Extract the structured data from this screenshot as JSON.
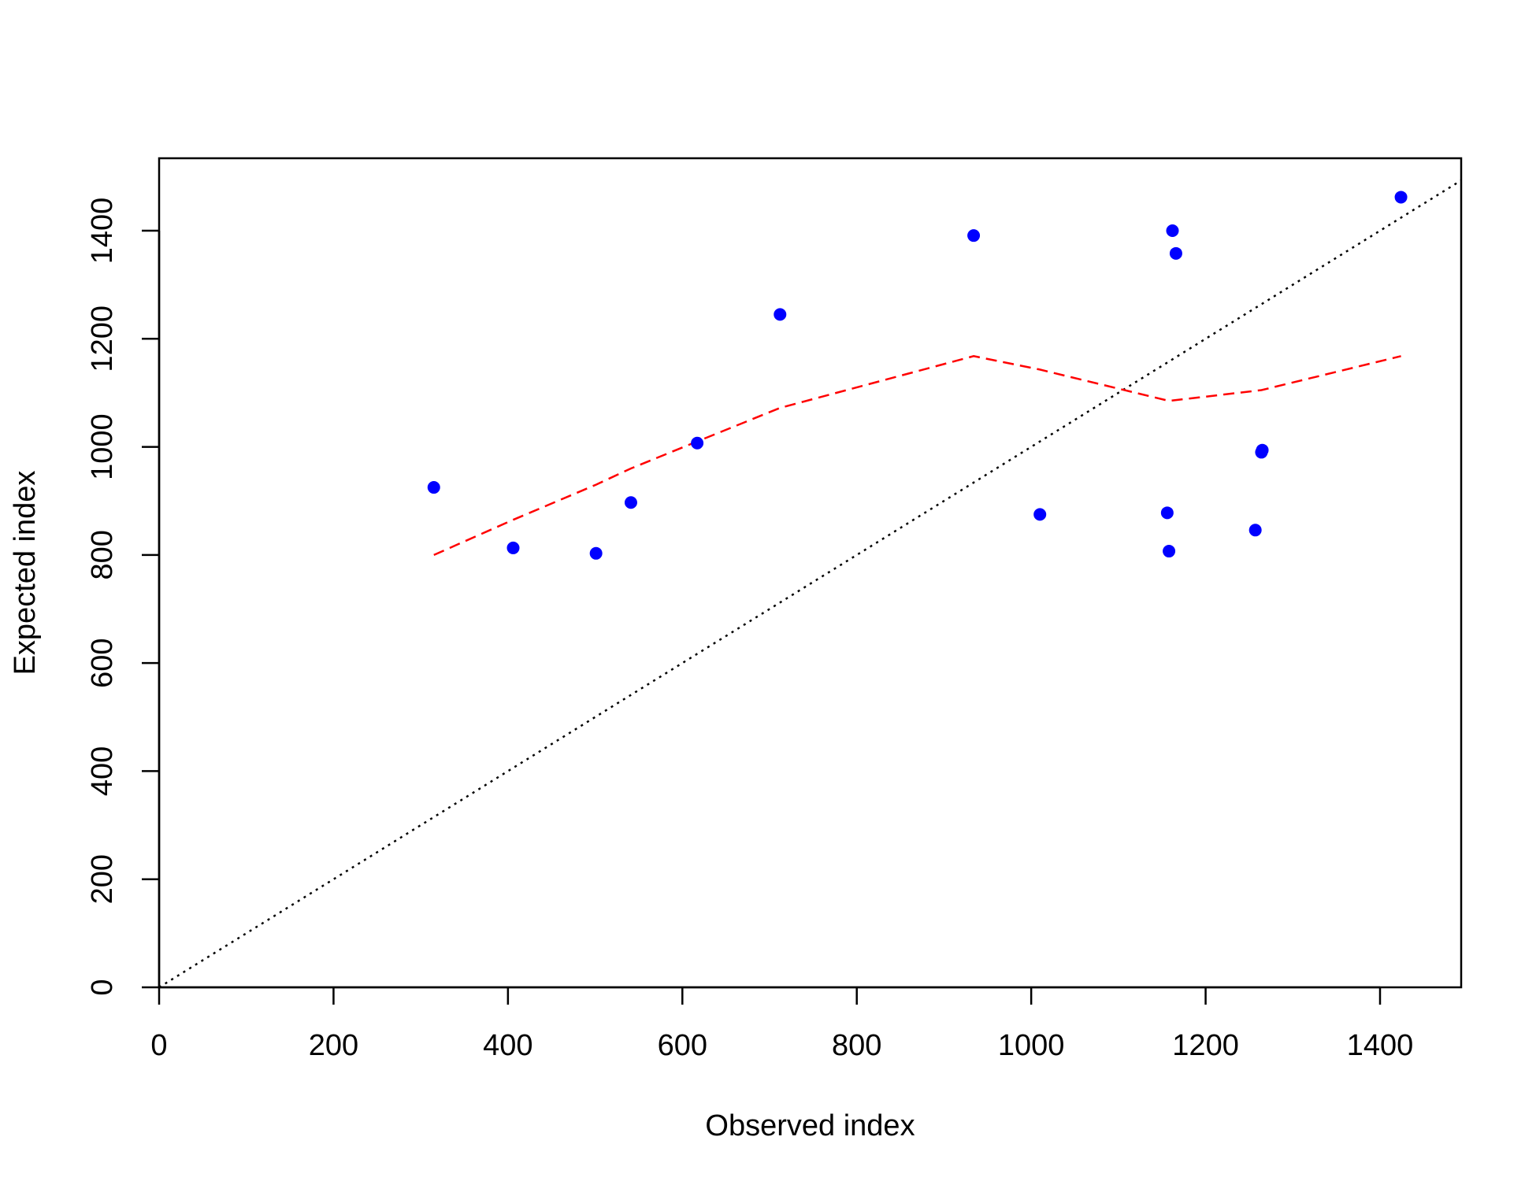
{
  "chart_data": {
    "type": "scatter",
    "title": "",
    "xlabel": "Observed index",
    "ylabel": "Expected index",
    "xlim": [
      0,
      1500
    ],
    "ylim": [
      0,
      1500
    ],
    "xticks": [
      0,
      200,
      400,
      600,
      800,
      1000,
      1200,
      1400
    ],
    "yticks": [
      0,
      200,
      400,
      600,
      800,
      1000,
      1200,
      1400
    ],
    "grid": false,
    "points": {
      "color": "#0000ff",
      "x": [
        315,
        406,
        501,
        541,
        617,
        712,
        934,
        1010,
        1156,
        1158,
        1162,
        1166,
        1257,
        1264,
        1265,
        1424
      ],
      "y": [
        925,
        813,
        803,
        897,
        1007,
        1245,
        1391,
        875,
        878,
        807,
        1400,
        1358,
        846,
        990,
        994,
        1462
      ]
    },
    "smooth_line": {
      "color": "#ff0000",
      "style": "dashed",
      "x": [
        315,
        406,
        501,
        541,
        617,
        712,
        934,
        1010,
        1158,
        1264,
        1424
      ],
      "y": [
        800,
        865,
        930,
        960,
        1010,
        1072,
        1168,
        1143,
        1085,
        1105,
        1168
      ]
    },
    "reference_line": {
      "color": "#000000",
      "style": "dotted",
      "x": [
        0,
        1500
      ],
      "y": [
        0,
        1500
      ]
    }
  }
}
